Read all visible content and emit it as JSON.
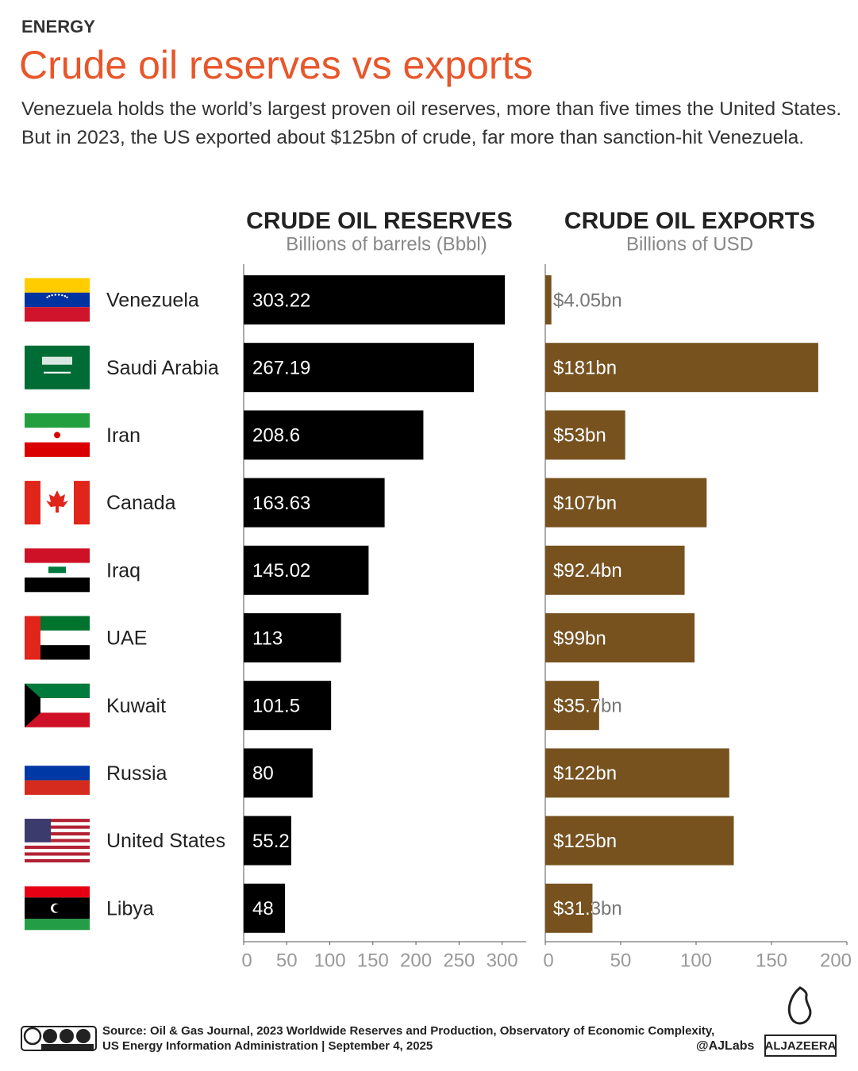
{
  "kicker": "ENERGY",
  "title": "Crude oil reserves vs exports",
  "subtitle": "Venezuela holds the world’s largest proven oil reserves, more than five times the United States. But in 2023, the US exported about $125bn of crude, far more than sanction-hit Venezuela.",
  "chart_data": [
    {
      "type": "bar",
      "orientation": "horizontal",
      "title": "CRUDE OIL RESERVES",
      "subtitle": "Billions of barrels (Bbbl)",
      "categories": [
        "Venezuela",
        "Saudi Arabia",
        "Iran",
        "Canada",
        "Iraq",
        "UAE",
        "Kuwait",
        "Russia",
        "United States",
        "Libya"
      ],
      "values": [
        303.22,
        267.19,
        208.6,
        163.63,
        145.02,
        113,
        101.5,
        80,
        55.2,
        48
      ],
      "color": "#000000",
      "xlim": [
        0,
        328
      ],
      "xticks": [
        0,
        50,
        100,
        150,
        200,
        250,
        300
      ]
    },
    {
      "type": "bar",
      "orientation": "horizontal",
      "title": "CRUDE OIL EXPORTS",
      "subtitle": "Billions of USD",
      "values": [
        4.05,
        181,
        53,
        107,
        92.4,
        99,
        35.7,
        122,
        125,
        31.3
      ],
      "value_labels": [
        "$4.05bn",
        "$181bn",
        "$53bn",
        "$107bn",
        "$92.4bn",
        "$99bn",
        "$35.7bn",
        "$122bn",
        "$125bn",
        "$31.3bn"
      ],
      "color": "#77521f",
      "xlim": [
        0,
        200
      ],
      "xticks": [
        0,
        50,
        100,
        150,
        200
      ]
    }
  ],
  "footer": {
    "source": "Source: Oil & Gas Journal, 2023 Worldwide Reserves and Production, Observatory of Economic Complexity, US Energy Information Administration  |  September 4, 2025",
    "handle": "@AJLabs",
    "logo": "ALJAZEERA"
  }
}
